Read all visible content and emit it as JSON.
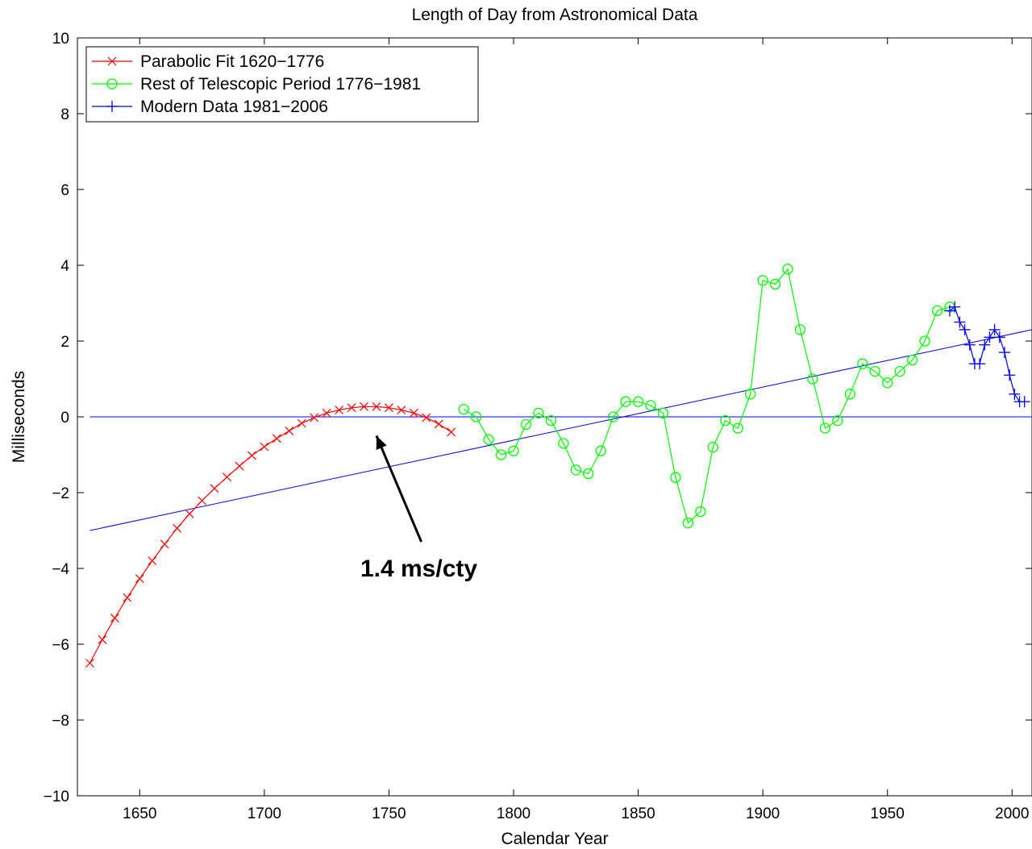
{
  "chart_data": {
    "type": "line",
    "title": "Length of Day from Astronomical Data",
    "xlabel": "Calendar Year",
    "ylabel": "Milliseconds",
    "xlim": [
      1625,
      2008
    ],
    "ylim": [
      -10,
      10
    ],
    "xticks": [
      1650,
      1700,
      1750,
      1800,
      1850,
      1900,
      1950,
      2000
    ],
    "xtick_labels": [
      "1650",
      "1700",
      "1750",
      "1800",
      "1850",
      "1900",
      "1950",
      "2000"
    ],
    "yticks": [
      -10,
      -8,
      -6,
      -4,
      -2,
      0,
      2,
      4,
      6,
      8,
      10
    ],
    "ytick_labels": [
      "−10",
      "−8",
      "−6",
      "−4",
      "−2",
      "0",
      "2",
      "4",
      "6",
      "8",
      "10"
    ],
    "grid": false,
    "legend_position": "top-left",
    "series": [
      {
        "name": "Parabolic Fit 1620−1776",
        "color": "#ff0000",
        "marker": "x",
        "x": [
          1630,
          1635,
          1640,
          1645,
          1650,
          1655,
          1660,
          1665,
          1670,
          1675,
          1680,
          1685,
          1690,
          1695,
          1700,
          1705,
          1710,
          1715,
          1720,
          1725,
          1730,
          1735,
          1740,
          1745,
          1750,
          1755,
          1760,
          1765,
          1770,
          1775
        ],
        "y": [
          -6.5,
          -5.88,
          -5.31,
          -4.77,
          -4.27,
          -3.8,
          -3.36,
          -2.94,
          -2.56,
          -2.21,
          -1.89,
          -1.59,
          -1.3,
          -1.02,
          -0.79,
          -0.57,
          -0.37,
          -0.17,
          -0.02,
          0.1,
          0.18,
          0.24,
          0.27,
          0.27,
          0.24,
          0.18,
          0.1,
          -0.02,
          -0.19,
          -0.4
        ]
      },
      {
        "name": "Rest of Telescopic Period 1776−1981",
        "color": "#00ff00",
        "marker": "circle",
        "x": [
          1780,
          1785,
          1790,
          1795,
          1800,
          1805,
          1810,
          1815,
          1820,
          1825,
          1830,
          1835,
          1840,
          1845,
          1850,
          1855,
          1860,
          1865,
          1870,
          1875,
          1880,
          1885,
          1890,
          1895,
          1900,
          1905,
          1910,
          1915,
          1920,
          1925,
          1930,
          1935,
          1940,
          1945,
          1950,
          1955,
          1960,
          1965,
          1970,
          1975
        ],
        "y": [
          0.2,
          0.0,
          -0.6,
          -1.0,
          -0.9,
          -0.2,
          0.1,
          -0.1,
          -0.7,
          -1.4,
          -1.5,
          -0.9,
          0.0,
          0.4,
          0.4,
          0.3,
          0.1,
          -1.6,
          -2.8,
          -2.5,
          -0.8,
          -0.1,
          -0.3,
          0.6,
          3.6,
          3.5,
          3.9,
          2.3,
          1.0,
          -0.3,
          -0.1,
          0.6,
          1.4,
          1.2,
          0.9,
          1.2,
          1.5,
          2.0,
          2.8,
          2.9
        ]
      },
      {
        "name": "Modern Data 1981−2006",
        "color": "#0000ff",
        "marker": "plus",
        "x": [
          1975,
          1977,
          1979,
          1981,
          1983,
          1985,
          1987,
          1989,
          1991,
          1993,
          1995,
          1997,
          1999,
          2001,
          2003,
          2005
        ],
        "y": [
          2.8,
          2.9,
          2.5,
          2.3,
          1.9,
          1.4,
          1.4,
          1.9,
          2.1,
          2.3,
          2.1,
          1.7,
          1.1,
          0.6,
          0.4,
          0.4
        ]
      }
    ],
    "reference_lines": [
      {
        "x": [
          1630,
          2008
        ],
        "y": [
          0,
          0
        ],
        "color": "#0000ff"
      },
      {
        "x": [
          1630,
          2008
        ],
        "y": [
          -3.0,
          2.3
        ],
        "color": "#0000ff"
      }
    ],
    "annotation": {
      "text": "1.4 ms/cty",
      "arrow_to": [
        1745,
        -0.5
      ],
      "arrow_from": [
        1763,
        -3.3
      ],
      "text_at": [
        1762,
        -4.0
      ]
    }
  }
}
